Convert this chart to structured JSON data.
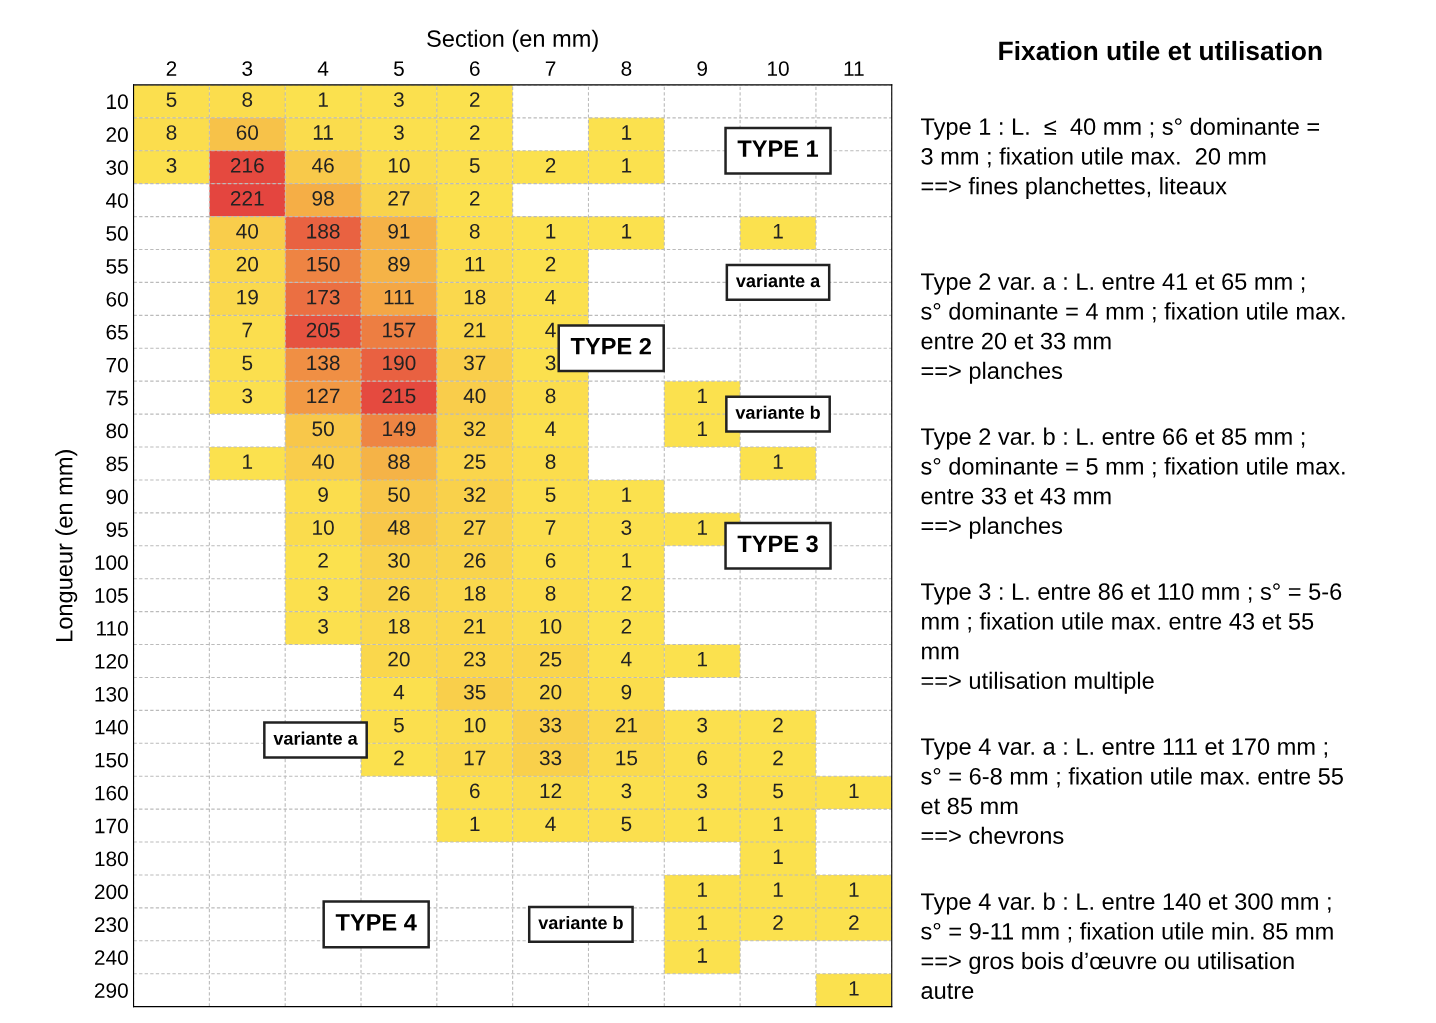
{
  "chart_data": {
    "type": "heatmap",
    "title": "Fixation utile et utilisation",
    "xlabel": "Section (en mm)",
    "ylabel": "Longueur (en mm)",
    "categories": [
      "2",
      "3",
      "4",
      "5",
      "6",
      "7",
      "8",
      "9",
      "10",
      "11"
    ],
    "y_categories": [
      "10",
      "20",
      "30",
      "40",
      "50",
      "55",
      "60",
      "65",
      "70",
      "75",
      "80",
      "85",
      "90",
      "95",
      "100",
      "105",
      "110",
      "120",
      "130",
      "140",
      "150",
      "160",
      "170",
      "180",
      "200",
      "230",
      "240",
      "290"
    ],
    "cells": [
      [
        5,
        8,
        1,
        3,
        2,
        null,
        null,
        null,
        null,
        null
      ],
      [
        8,
        60,
        11,
        3,
        2,
        null,
        1,
        null,
        null,
        null
      ],
      [
        3,
        216,
        46,
        10,
        5,
        2,
        1,
        null,
        null,
        null
      ],
      [
        null,
        221,
        98,
        27,
        2,
        null,
        null,
        null,
        null,
        null
      ],
      [
        null,
        40,
        188,
        91,
        8,
        1,
        1,
        null,
        1,
        null
      ],
      [
        null,
        20,
        150,
        89,
        11,
        2,
        null,
        null,
        null,
        null
      ],
      [
        null,
        19,
        173,
        111,
        18,
        4,
        null,
        null,
        null,
        null
      ],
      [
        null,
        7,
        205,
        157,
        21,
        4,
        null,
        null,
        null,
        null
      ],
      [
        null,
        5,
        138,
        190,
        37,
        3,
        null,
        null,
        null,
        null
      ],
      [
        null,
        3,
        127,
        215,
        40,
        8,
        null,
        1,
        null,
        null
      ],
      [
        null,
        null,
        50,
        149,
        32,
        4,
        null,
        1,
        null,
        null
      ],
      [
        null,
        1,
        40,
        88,
        25,
        8,
        null,
        null,
        1,
        null
      ],
      [
        null,
        null,
        9,
        50,
        32,
        5,
        1,
        null,
        null,
        null
      ],
      [
        null,
        null,
        10,
        48,
        27,
        7,
        3,
        1,
        null,
        null
      ],
      [
        null,
        null,
        2,
        30,
        26,
        6,
        1,
        null,
        null,
        null
      ],
      [
        null,
        null,
        3,
        26,
        18,
        8,
        2,
        null,
        null,
        null
      ],
      [
        null,
        null,
        3,
        18,
        21,
        10,
        2,
        null,
        null,
        null
      ],
      [
        null,
        null,
        null,
        20,
        23,
        25,
        4,
        1,
        null,
        null
      ],
      [
        null,
        null,
        null,
        4,
        35,
        20,
        9,
        null,
        null,
        null
      ],
      [
        null,
        null,
        null,
        5,
        10,
        33,
        21,
        3,
        2,
        null
      ],
      [
        null,
        null,
        null,
        2,
        17,
        33,
        15,
        6,
        2,
        null
      ],
      [
        null,
        null,
        null,
        null,
        6,
        12,
        3,
        3,
        5,
        1
      ],
      [
        null,
        null,
        null,
        null,
        1,
        4,
        5,
        1,
        1,
        null
      ],
      [
        null,
        null,
        null,
        null,
        null,
        null,
        null,
        null,
        1,
        null
      ],
      [
        null,
        null,
        null,
        null,
        null,
        null,
        null,
        1,
        1,
        1
      ],
      [
        null,
        null,
        null,
        null,
        null,
        null,
        null,
        1,
        2,
        2
      ],
      [
        null,
        null,
        null,
        null,
        null,
        null,
        null,
        1,
        null,
        null
      ],
      [
        null,
        null,
        null,
        null,
        null,
        null,
        null,
        null,
        null,
        1
      ]
    ],
    "colors": [
      "#fbe14e",
      "#f4a745",
      "#e4453f"
    ],
    "data_labels": true,
    "grid": true,
    "annotations": [
      "TYPE 1",
      "variante a",
      "TYPE 2",
      "variante b",
      "TYPE 3",
      "variante a",
      "TYPE 4",
      "variante b",
      "Type 1 : L.  ≤  40 mm ; s° dominante =\n3 mm ; fixation utile max.  20 mm\n==> fines planchettes, liteaux",
      "Type 2 var. a : L. entre 41 et 65 mm ;\ns° dominante = 4 mm ; fixation utile max.\nentre 20 et 33 mm\n==> planches",
      "Type 2 var. b : L. entre 66 et 85 mm ;\ns° dominante = 5 mm ; fixation utile max.\nentre 33 et 43 mm\n==> planches",
      "Type 3 : L. entre 86 et 110 mm ; s° = 5-6\nmm ; fixation utile max. entre 43 et 55\nmm\n==> utilisation multiple",
      "Type 4 var. a : L. entre 111 et 170 mm ;\ns° = 6-8 mm ; fixation utile max. entre 55\net 85 mm\n==> chevrons",
      "Type 4 var. b : L. entre 140 et 300 mm ;\ns° = 9-11 mm ; fixation utile min. 85 mm\n==> gros bois d’œuvre ou utilisation\nautre"
    ]
  }
}
